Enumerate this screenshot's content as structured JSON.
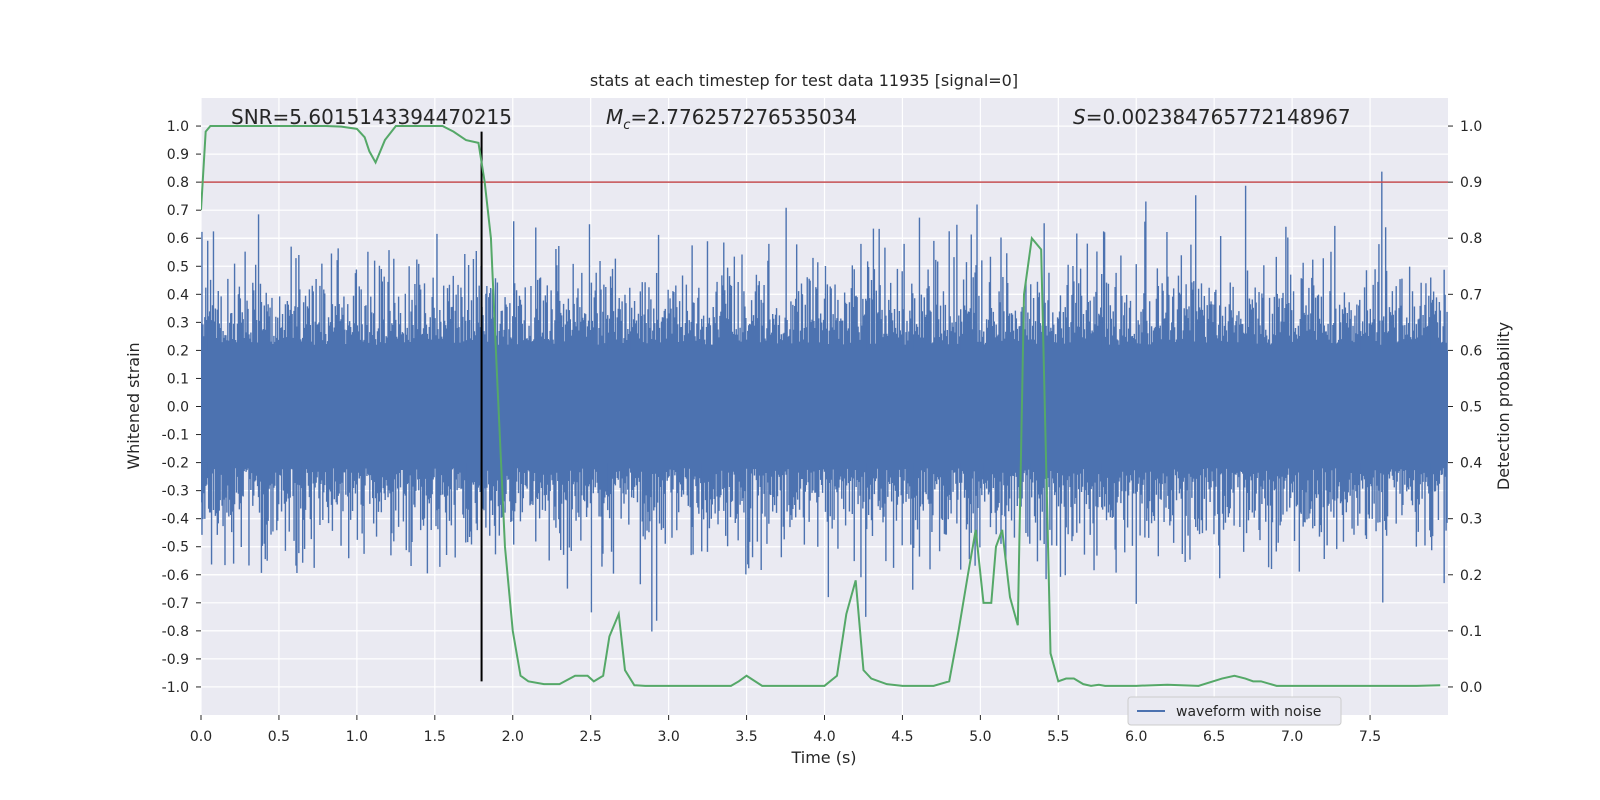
{
  "chart_data": {
    "type": "line",
    "title": "stats at each timestep for test data 11935 [signal=0]",
    "xlabel": "Time (s)",
    "ylabel_left": "Whitened strain",
    "ylabel_right": "Detection probability",
    "xlim": [
      0.0,
      8.0
    ],
    "ylim_left": [
      -1.1,
      1.1
    ],
    "ylim_right": [
      -0.05,
      1.05
    ],
    "x_ticks": [
      "0.0",
      "0.5",
      "1.0",
      "1.5",
      "2.0",
      "2.5",
      "3.0",
      "3.5",
      "4.0",
      "4.5",
      "5.0",
      "5.5",
      "6.0",
      "6.5",
      "7.0",
      "7.5"
    ],
    "y_ticks_left": [
      "1.0",
      "0.9",
      "0.8",
      "0.7",
      "0.6",
      "0.5",
      "0.4",
      "0.3",
      "0.2",
      "0.1",
      "0.0",
      "-0.1",
      "-0.2",
      "-0.3",
      "-0.4",
      "-0.5",
      "-0.6",
      "-0.7",
      "-0.8",
      "-0.9",
      "-1.0"
    ],
    "y_ticks_right": [
      "1.0",
      "0.9",
      "0.8",
      "0.7",
      "0.6",
      "0.5",
      "0.4",
      "0.3",
      "0.2",
      "0.1",
      "0.0"
    ],
    "grid": true,
    "legend": {
      "position": "lower-right",
      "entries": [
        "waveform with noise"
      ]
    },
    "annotations": {
      "snr": "SNR=5.6015143394470215",
      "mc_symbol": "M",
      "mc_sub": "c",
      "mc_value": "=2.776257276535034",
      "s_symbol": "S",
      "s_value": "=0.002384765772148967"
    },
    "threshold_line": {
      "axis": "right",
      "value": 0.9,
      "color": "#c44e52"
    },
    "vertical_marker": {
      "x": 1.8,
      "color": "#000000"
    },
    "series": [
      {
        "name": "waveform with noise",
        "axis": "left",
        "color": "#4c72b0",
        "style": "noise-band",
        "typical_amplitude": 0.35,
        "peak_amplitude": 1.0
      },
      {
        "axis": "right",
        "color": "#55a868",
        "x": [
          0.0,
          0.03,
          0.06,
          0.1,
          0.2,
          0.4,
          0.6,
          0.8,
          0.9,
          1.0,
          1.05,
          1.08,
          1.12,
          1.18,
          1.25,
          1.4,
          1.55,
          1.62,
          1.7,
          1.78,
          1.82,
          1.86,
          1.9,
          1.95,
          2.0,
          2.05,
          2.1,
          2.2,
          2.3,
          2.4,
          2.48,
          2.52,
          2.58,
          2.62,
          2.68,
          2.72,
          2.78,
          2.85,
          3.0,
          3.2,
          3.4,
          3.45,
          3.5,
          3.6,
          3.8,
          4.0,
          4.08,
          4.14,
          4.2,
          4.25,
          4.3,
          4.4,
          4.5,
          4.6,
          4.7,
          4.8,
          4.86,
          4.92,
          4.97,
          5.02,
          5.07,
          5.1,
          5.14,
          5.19,
          5.24,
          5.28,
          5.33,
          5.39,
          5.45,
          5.5,
          5.55,
          5.6,
          5.66,
          5.71,
          5.76,
          5.8,
          6.0,
          6.2,
          6.4,
          6.55,
          6.63,
          6.7,
          6.75,
          6.8,
          6.9,
          7.0,
          7.2,
          7.5,
          7.8,
          7.95
        ],
        "values": [
          0.85,
          0.99,
          1.0,
          1.0,
          1.0,
          1.0,
          1.0,
          1.0,
          0.999,
          0.995,
          0.98,
          0.955,
          0.935,
          0.975,
          1.0,
          1.0,
          1.0,
          0.99,
          0.975,
          0.97,
          0.9,
          0.8,
          0.55,
          0.25,
          0.1,
          0.02,
          0.01,
          0.005,
          0.005,
          0.02,
          0.02,
          0.01,
          0.02,
          0.09,
          0.13,
          0.03,
          0.003,
          0.002,
          0.002,
          0.002,
          0.002,
          0.01,
          0.02,
          0.002,
          0.002,
          0.002,
          0.02,
          0.13,
          0.19,
          0.03,
          0.015,
          0.005,
          0.002,
          0.002,
          0.002,
          0.01,
          0.1,
          0.2,
          0.28,
          0.15,
          0.15,
          0.25,
          0.28,
          0.16,
          0.11,
          0.7,
          0.8,
          0.78,
          0.06,
          0.01,
          0.015,
          0.015,
          0.005,
          0.002,
          0.004,
          0.002,
          0.002,
          0.004,
          0.002,
          0.015,
          0.02,
          0.015,
          0.01,
          0.01,
          0.002,
          0.002,
          0.002,
          0.002,
          0.002,
          0.003
        ]
      }
    ]
  }
}
